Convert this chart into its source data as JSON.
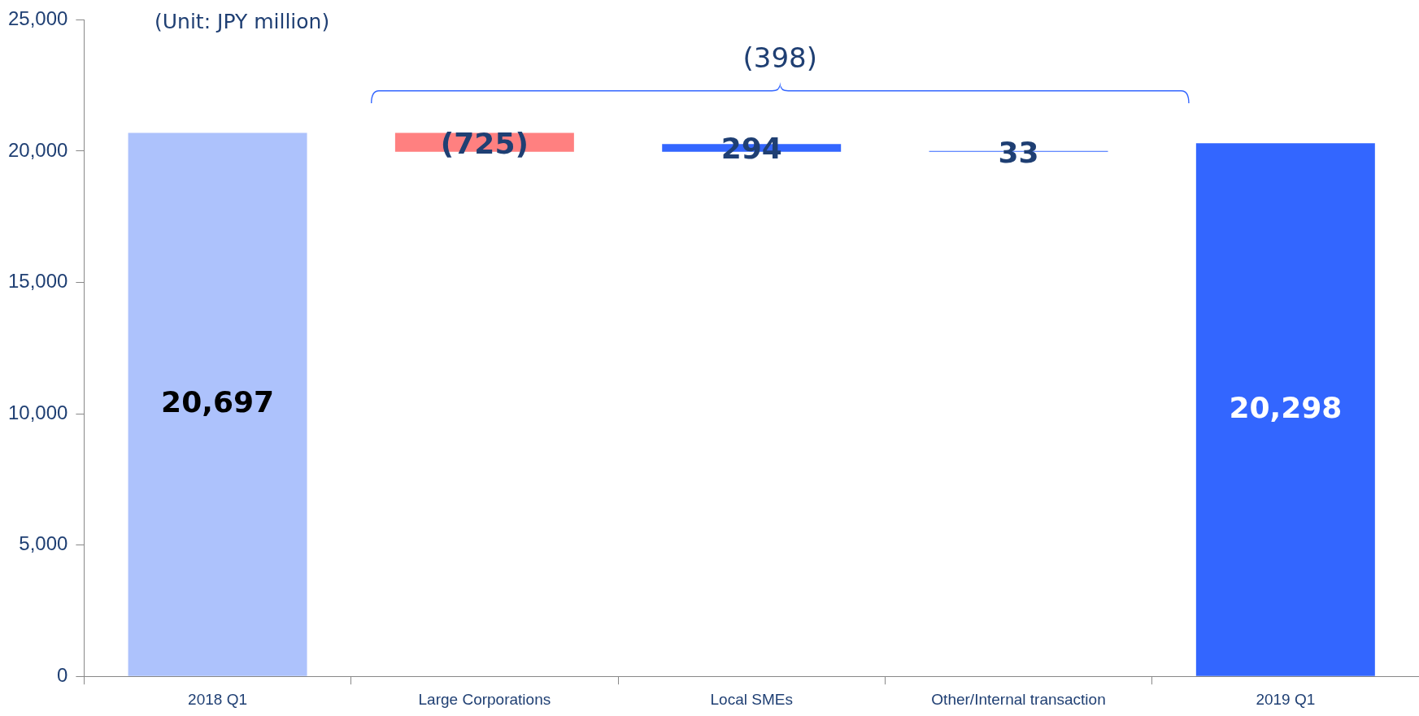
{
  "chart_data": {
    "type": "bar",
    "categories": [
      "2018 Q1",
      "Large Corporations",
      "Local SMEs",
      "Other/Internal transaction",
      "2019 Q1"
    ],
    "values": [
      20697,
      -725,
      294,
      33,
      20298
    ],
    "base": [
      0,
      20697,
      19972,
      19972,
      0
    ],
    "colors": [
      "#adc2fc",
      "#ff8080",
      "#3366ff",
      "#3366ff",
      "#3366ff"
    ],
    "value_labels": [
      "20,697",
      "(725)",
      "294",
      "33",
      "20,298"
    ],
    "ylim": [
      0,
      25000
    ],
    "yticks": [
      0,
      {
        "value": 5000,
        "label": "5,000"
      },
      {
        "value": 10000,
        "label": "10,000"
      },
      {
        "value": 15000,
        "label": "15,000"
      },
      {
        "value": 20000,
        "label": "20,000"
      },
      {
        "value": 25000,
        "label": "25,000"
      }
    ],
    "grid": false,
    "legend": false,
    "annotations": [
      "(Unit: JPY million)",
      "(398)"
    ]
  }
}
